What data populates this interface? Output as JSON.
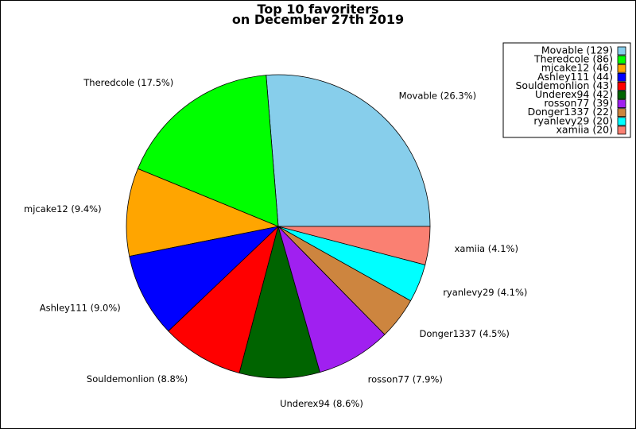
{
  "chart_data": {
    "type": "pie",
    "title": "Top 10 favoriters",
    "subtitle": "on December 27th 2019",
    "legend_position": "top-right",
    "start_angle_deg": 0,
    "direction": "counterclockwise",
    "slices": [
      {
        "name": "Movable",
        "value": 129,
        "percent_label": "26.3%",
        "legend_label": "Movable (129)",
        "color": "#87CEEB"
      },
      {
        "name": "Theredcole",
        "value": 86,
        "percent_label": "17.5%",
        "legend_label": "Theredcole (86)",
        "color": "#00FF00"
      },
      {
        "name": "mjcake12",
        "value": 46,
        "percent_label": "9.4%",
        "legend_label": "mjcake12 (46)",
        "color": "#FFA500"
      },
      {
        "name": "Ashley111",
        "value": 44,
        "percent_label": "9.0%",
        "legend_label": "Ashley111 (44)",
        "color": "#0000FF"
      },
      {
        "name": "Souldemonlion",
        "value": 43,
        "percent_label": "8.8%",
        "legend_label": "Souldemonlion (43)",
        "color": "#FF0000"
      },
      {
        "name": "Underex94",
        "value": 42,
        "percent_label": "8.6%",
        "legend_label": "Underex94 (42)",
        "color": "#006400"
      },
      {
        "name": "rosson77",
        "value": 39,
        "percent_label": "7.9%",
        "legend_label": "rosson77 (39)",
        "color": "#A020F0"
      },
      {
        "name": "Donger1337",
        "value": 22,
        "percent_label": "4.5%",
        "legend_label": "Donger1337 (22)",
        "color": "#CD853F"
      },
      {
        "name": "ryanlevy29",
        "value": 20,
        "percent_label": "4.1%",
        "legend_label": "ryanlevy29 (20)",
        "color": "#00FFFF"
      },
      {
        "name": "xamiia",
        "value": 20,
        "percent_label": "4.1%",
        "legend_label": "xamiia (20)",
        "color": "#FA8072"
      }
    ]
  }
}
